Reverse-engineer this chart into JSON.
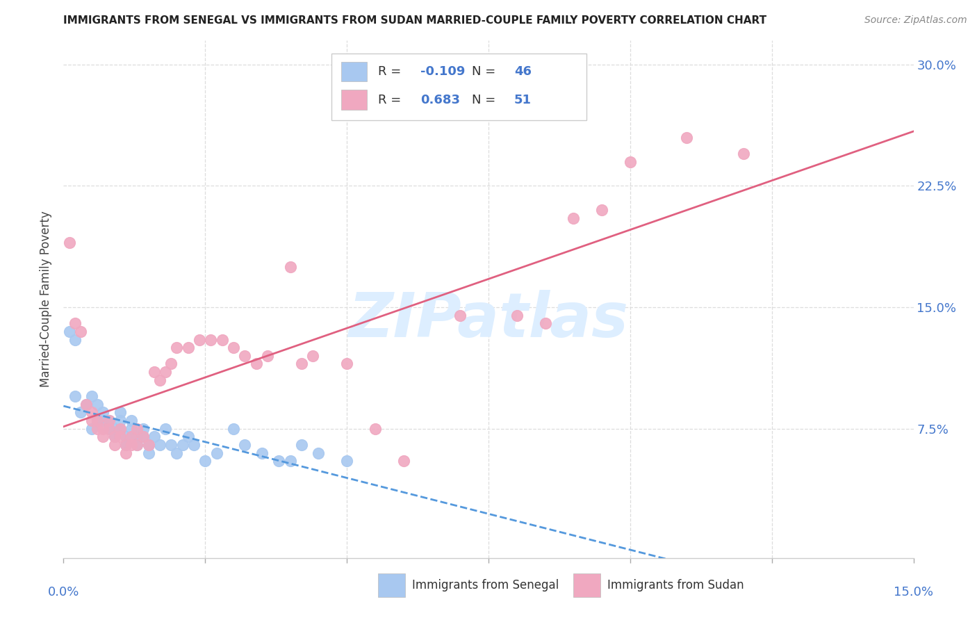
{
  "title": "IMMIGRANTS FROM SENEGAL VS IMMIGRANTS FROM SUDAN MARRIED-COUPLE FAMILY POVERTY CORRELATION CHART",
  "source": "Source: ZipAtlas.com",
  "ylabel": "Married-Couple Family Poverty",
  "ytick_labels": [
    "7.5%",
    "15.0%",
    "22.5%",
    "30.0%"
  ],
  "ytick_values": [
    0.075,
    0.15,
    0.225,
    0.3
  ],
  "xlim": [
    0.0,
    0.15
  ],
  "ylim": [
    -0.005,
    0.315
  ],
  "senegal_color": "#a8c8f0",
  "sudan_color": "#f0a8c0",
  "senegal_line_color": "#5599dd",
  "sudan_line_color": "#e06080",
  "watermark_color": "#ddeeff",
  "watermark_text": "ZIPatlas",
  "legend_text_color": "#4477cc",
  "legend_black": "#333333",
  "grid_color": "#dddddd",
  "spine_color": "#cccccc",
  "senegal_R": -0.109,
  "sudan_R": 0.683,
  "senegal_N": 46,
  "sudan_N": 51,
  "senegal_points": [
    [
      0.001,
      0.135
    ],
    [
      0.002,
      0.13
    ],
    [
      0.002,
      0.095
    ],
    [
      0.003,
      0.085
    ],
    [
      0.004,
      0.09
    ],
    [
      0.005,
      0.095
    ],
    [
      0.005,
      0.075
    ],
    [
      0.006,
      0.08
    ],
    [
      0.006,
      0.09
    ],
    [
      0.007,
      0.08
    ],
    [
      0.007,
      0.085
    ],
    [
      0.008,
      0.075
    ],
    [
      0.008,
      0.08
    ],
    [
      0.009,
      0.075
    ],
    [
      0.009,
      0.07
    ],
    [
      0.01,
      0.085
    ],
    [
      0.01,
      0.075
    ],
    [
      0.01,
      0.08
    ],
    [
      0.011,
      0.065
    ],
    [
      0.011,
      0.07
    ],
    [
      0.012,
      0.075
    ],
    [
      0.012,
      0.08
    ],
    [
      0.013,
      0.07
    ],
    [
      0.013,
      0.065
    ],
    [
      0.014,
      0.075
    ],
    [
      0.014,
      0.07
    ],
    [
      0.015,
      0.065
    ],
    [
      0.015,
      0.06
    ],
    [
      0.016,
      0.07
    ],
    [
      0.017,
      0.065
    ],
    [
      0.018,
      0.075
    ],
    [
      0.019,
      0.065
    ],
    [
      0.02,
      0.06
    ],
    [
      0.021,
      0.065
    ],
    [
      0.022,
      0.07
    ],
    [
      0.023,
      0.065
    ],
    [
      0.025,
      0.055
    ],
    [
      0.027,
      0.06
    ],
    [
      0.03,
      0.075
    ],
    [
      0.032,
      0.065
    ],
    [
      0.035,
      0.06
    ],
    [
      0.038,
      0.055
    ],
    [
      0.04,
      0.055
    ],
    [
      0.042,
      0.065
    ],
    [
      0.045,
      0.06
    ],
    [
      0.05,
      0.055
    ]
  ],
  "sudan_points": [
    [
      0.001,
      0.19
    ],
    [
      0.002,
      0.14
    ],
    [
      0.003,
      0.135
    ],
    [
      0.004,
      0.09
    ],
    [
      0.005,
      0.08
    ],
    [
      0.005,
      0.085
    ],
    [
      0.006,
      0.075
    ],
    [
      0.006,
      0.08
    ],
    [
      0.007,
      0.075
    ],
    [
      0.007,
      0.07
    ],
    [
      0.008,
      0.08
    ],
    [
      0.008,
      0.075
    ],
    [
      0.009,
      0.07
    ],
    [
      0.009,
      0.065
    ],
    [
      0.01,
      0.075
    ],
    [
      0.01,
      0.07
    ],
    [
      0.011,
      0.065
    ],
    [
      0.011,
      0.06
    ],
    [
      0.012,
      0.07
    ],
    [
      0.012,
      0.065
    ],
    [
      0.013,
      0.075
    ],
    [
      0.013,
      0.065
    ],
    [
      0.014,
      0.07
    ],
    [
      0.015,
      0.065
    ],
    [
      0.016,
      0.11
    ],
    [
      0.017,
      0.105
    ],
    [
      0.018,
      0.11
    ],
    [
      0.019,
      0.115
    ],
    [
      0.02,
      0.125
    ],
    [
      0.022,
      0.125
    ],
    [
      0.024,
      0.13
    ],
    [
      0.026,
      0.13
    ],
    [
      0.028,
      0.13
    ],
    [
      0.03,
      0.125
    ],
    [
      0.032,
      0.12
    ],
    [
      0.034,
      0.115
    ],
    [
      0.036,
      0.12
    ],
    [
      0.04,
      0.175
    ],
    [
      0.042,
      0.115
    ],
    [
      0.044,
      0.12
    ],
    [
      0.05,
      0.115
    ],
    [
      0.055,
      0.075
    ],
    [
      0.06,
      0.055
    ],
    [
      0.07,
      0.145
    ],
    [
      0.08,
      0.145
    ],
    [
      0.085,
      0.14
    ],
    [
      0.09,
      0.205
    ],
    [
      0.095,
      0.21
    ],
    [
      0.1,
      0.24
    ],
    [
      0.11,
      0.255
    ],
    [
      0.12,
      0.245
    ]
  ]
}
